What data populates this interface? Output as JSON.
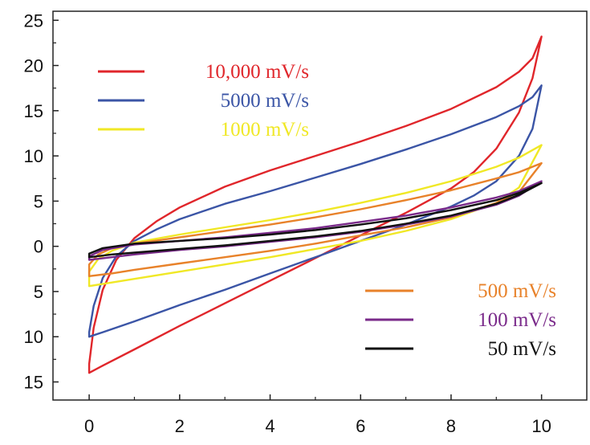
{
  "chart_data": {
    "type": "line",
    "title": "",
    "xlabel": "",
    "ylabel": "",
    "xlim": [
      -0.8,
      11.0
    ],
    "ylim": [
      -17,
      26
    ],
    "x_ticks": [
      0,
      2,
      4,
      6,
      8,
      10
    ],
    "x_tick_labels": [
      "0",
      "2",
      "4",
      "6",
      "8",
      "10"
    ],
    "y_ticks": [
      25,
      20,
      15,
      10,
      5,
      0,
      -5,
      -10,
      -15
    ],
    "y_tick_labels": [
      "25",
      "20",
      "15",
      "10",
      "5",
      "0",
      "5",
      "10",
      "15"
    ],
    "grid": false,
    "legends": [
      {
        "placement": "top-left",
        "entries": [
          "10,000 mV/s",
          "5000 mV/s",
          "1000 mV/s"
        ]
      },
      {
        "placement": "bottom-right",
        "entries": [
          "500 mV/s",
          "100 mV/s",
          "50 mV/s"
        ]
      }
    ],
    "series": [
      {
        "name": "10,000 mV/s",
        "color": "#e0262b",
        "upper": {
          "x": [
            0,
            0.1,
            0.3,
            0.6,
            1.0,
            1.5,
            2,
            3,
            4,
            5,
            6,
            7,
            8,
            9,
            9.5,
            9.8,
            10.0
          ],
          "y": [
            -13.0,
            -9.0,
            -4.8,
            -1.5,
            0.9,
            2.8,
            4.3,
            6.6,
            8.4,
            10.0,
            11.6,
            13.3,
            15.2,
            17.6,
            19.3,
            20.8,
            23.2
          ]
        },
        "lower": {
          "x": [
            0,
            0.3,
            1,
            2,
            3,
            4,
            5,
            6,
            7,
            8,
            8.5,
            9,
            9.5,
            9.8,
            10.0
          ],
          "y": [
            -14.0,
            -13.2,
            -11.4,
            -8.8,
            -6.3,
            -3.8,
            -1.3,
            1.2,
            3.7,
            6.4,
            8.2,
            10.8,
            14.8,
            18.6,
            23.2
          ]
        }
      },
      {
        "name": "5000 mV/s",
        "color": "#3b55a6",
        "upper": {
          "x": [
            0,
            0.1,
            0.3,
            0.6,
            1.0,
            1.5,
            2,
            3,
            4,
            5,
            6,
            7,
            8,
            9,
            9.5,
            9.8,
            10.0
          ],
          "y": [
            -9.5,
            -6.6,
            -3.5,
            -1.1,
            0.6,
            1.9,
            3.0,
            4.7,
            6.1,
            7.6,
            9.1,
            10.7,
            12.4,
            14.3,
            15.5,
            16.5,
            17.8
          ]
        },
        "lower": {
          "x": [
            0,
            0.3,
            1,
            2,
            3,
            4,
            5,
            6,
            7,
            8,
            8.5,
            9,
            9.5,
            9.8,
            10.0
          ],
          "y": [
            -10.0,
            -9.5,
            -8.3,
            -6.5,
            -4.8,
            -3.0,
            -1.2,
            0.6,
            2.4,
            4.4,
            5.6,
            7.2,
            10.0,
            13.0,
            17.8
          ]
        }
      },
      {
        "name": "1000 mV/s",
        "color": "#f0e826",
        "upper": {
          "x": [
            0,
            0.2,
            0.5,
            1,
            2,
            3,
            4,
            5,
            6,
            7,
            8,
            9,
            9.5,
            10.0
          ],
          "y": [
            -2.8,
            -1.4,
            -0.5,
            0.4,
            1.3,
            2.1,
            2.9,
            3.8,
            4.8,
            5.9,
            7.2,
            8.8,
            9.8,
            11.2
          ]
        },
        "lower": {
          "x": [
            0,
            0.5,
            1,
            2,
            3,
            4,
            5,
            6,
            7,
            8,
            9,
            9.5,
            10.0
          ],
          "y": [
            -4.4,
            -4.0,
            -3.6,
            -2.8,
            -2.0,
            -1.2,
            -0.3,
            0.6,
            1.7,
            3.0,
            4.8,
            6.5,
            11.2
          ]
        }
      },
      {
        "name": "500 mV/s",
        "color": "#e8822a",
        "upper": {
          "x": [
            0,
            0.2,
            0.5,
            1,
            2,
            3,
            4,
            5,
            6,
            7,
            8,
            9,
            9.5,
            10.0
          ],
          "y": [
            -2.0,
            -0.9,
            -0.2,
            0.3,
            1.0,
            1.7,
            2.4,
            3.2,
            4.1,
            5.1,
            6.2,
            7.5,
            8.2,
            9.2
          ]
        },
        "lower": {
          "x": [
            0,
            0.5,
            1,
            2,
            3,
            4,
            5,
            6,
            7,
            8,
            9,
            9.5,
            10.0
          ],
          "y": [
            -3.3,
            -3.0,
            -2.6,
            -1.9,
            -1.2,
            -0.5,
            0.3,
            1.2,
            2.1,
            3.2,
            4.8,
            6.0,
            9.2
          ]
        }
      },
      {
        "name": "100 mV/s",
        "color": "#7a2a8a",
        "upper": {
          "x": [
            0,
            0.3,
            1,
            2,
            3,
            4,
            5,
            6,
            7,
            8,
            9,
            9.5,
            10.0
          ],
          "y": [
            -1.1,
            -0.4,
            0.2,
            0.6,
            1.0,
            1.5,
            2.0,
            2.7,
            3.4,
            4.3,
            5.4,
            6.1,
            7.2
          ]
        },
        "lower": {
          "x": [
            0,
            0.5,
            1,
            2,
            3,
            4,
            5,
            6,
            7,
            8,
            9,
            9.5,
            10.0
          ],
          "y": [
            -1.5,
            -1.2,
            -0.9,
            -0.4,
            0.0,
            0.5,
            1.0,
            1.6,
            2.4,
            3.3,
            4.6,
            5.6,
            7.2
          ]
        }
      },
      {
        "name": "50 mV/s",
        "color": "#111111",
        "upper": {
          "x": [
            0,
            0.3,
            1,
            2,
            3,
            4,
            5,
            6,
            7,
            8,
            9,
            9.5,
            10.0
          ],
          "y": [
            -0.8,
            -0.2,
            0.3,
            0.6,
            0.9,
            1.3,
            1.8,
            2.4,
            3.1,
            4.0,
            5.1,
            5.9,
            7.0
          ]
        },
        "lower": {
          "x": [
            0,
            0.5,
            1,
            2,
            3,
            4,
            5,
            6,
            7,
            8,
            9,
            9.5,
            10.0
          ],
          "y": [
            -1.2,
            -0.9,
            -0.7,
            -0.3,
            0.1,
            0.6,
            1.1,
            1.7,
            2.5,
            3.4,
            4.7,
            5.7,
            7.0
          ]
        }
      }
    ]
  }
}
